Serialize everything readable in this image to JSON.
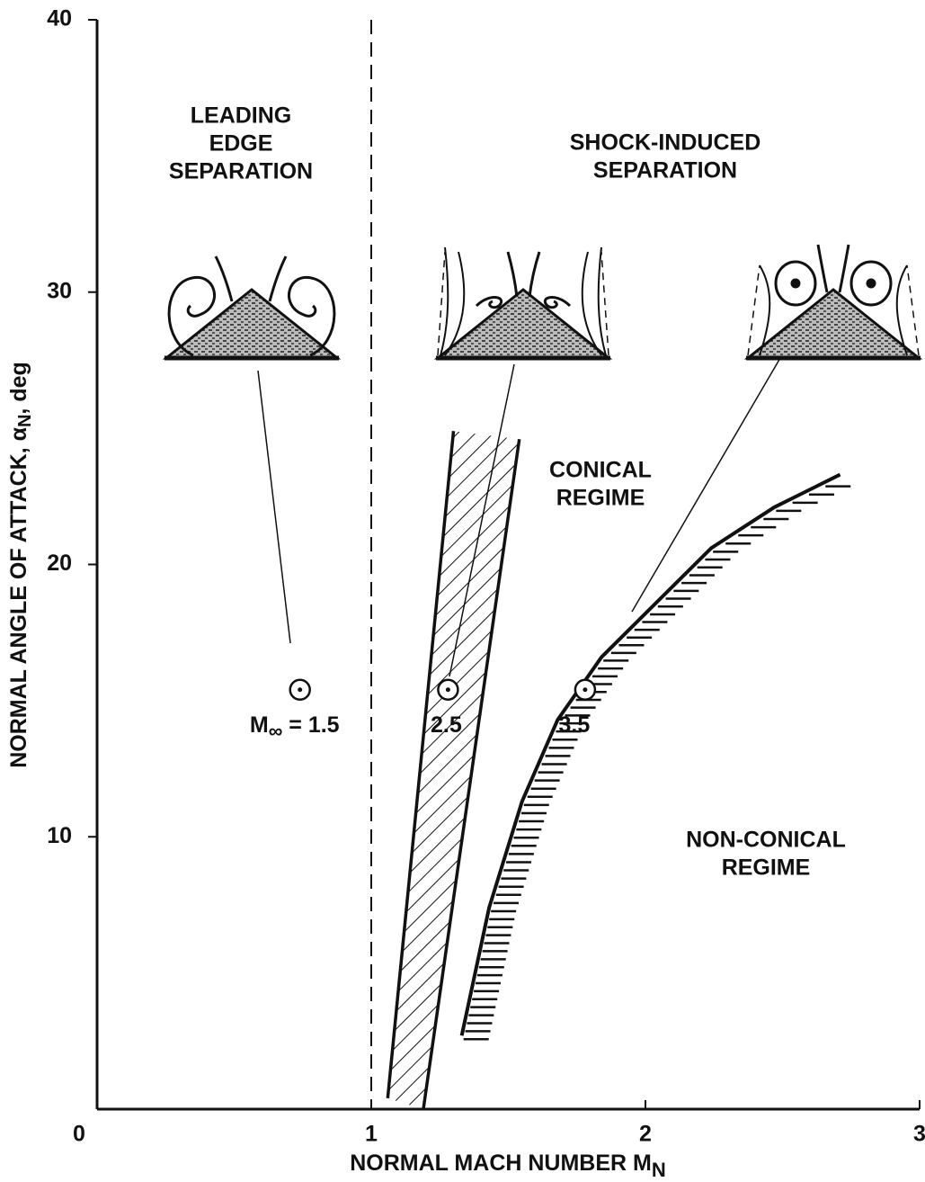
{
  "chart_data": {
    "type": "line",
    "xlabel": [
      "NORMAL MACH NUMBER M",
      "N"
    ],
    "ylabel": [
      "NORMAL ANGLE OF ATTACK, α",
      "N",
      ", deg"
    ],
    "xlim": [
      0,
      3
    ],
    "ylim": [
      0,
      40
    ],
    "xticks": [
      0,
      1,
      2,
      3
    ],
    "yticks": [
      10,
      20,
      30,
      40
    ],
    "vline": 1,
    "band": {
      "left": {
        "x": [
          1.06,
          1.3
        ],
        "y": [
          0.4,
          24.9
        ]
      },
      "right": {
        "x": [
          1.19,
          1.54
        ],
        "y": [
          0,
          24.6
        ]
      }
    },
    "curve": {
      "x": [
        1.33,
        1.43,
        1.55,
        1.68,
        1.84,
        2.01,
        2.24,
        2.47,
        2.71
      ],
      "y": [
        2.7,
        7.4,
        11.3,
        14.3,
        16.6,
        18.3,
        20.6,
        22.1,
        23.3
      ]
    },
    "points": [
      {
        "x": 0.74,
        "y": 15.4,
        "label": [
          "M",
          "∞",
          " = 1.5"
        ]
      },
      {
        "x": 1.28,
        "y": 15.4,
        "label": [
          "2.5"
        ]
      },
      {
        "x": 1.78,
        "y": 15.4,
        "label": [
          "3.5"
        ]
      }
    ],
    "annotations": [
      [
        "LEADING",
        "EDGE",
        "SEPARATION"
      ],
      [
        "SHOCK-INDUCED",
        "SEPARATION"
      ],
      [
        "CONICAL",
        "REGIME"
      ],
      [
        "NON-CONICAL",
        "REGIME"
      ]
    ]
  }
}
